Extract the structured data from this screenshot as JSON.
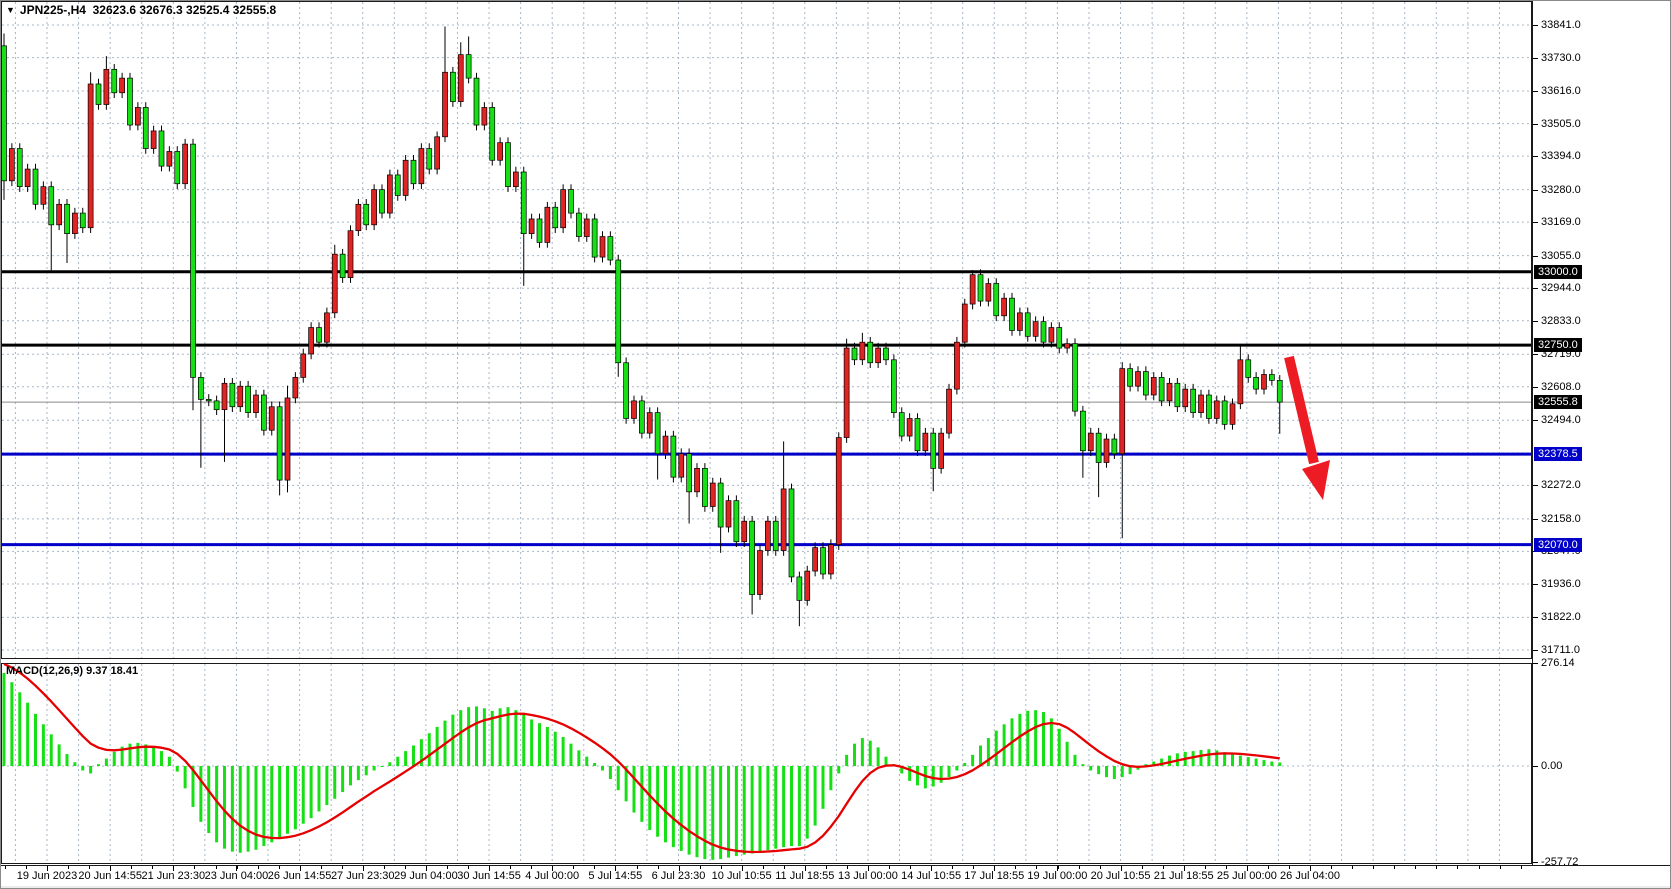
{
  "header": {
    "title": "JPN225-,H4  32623.6 32676.3 32525.4 32555.8",
    "symbol": "JPN225-",
    "period": "H4",
    "open": "32623.6",
    "high": "32676.3",
    "low": "32525.4",
    "close": "32555.8",
    "dropdown_icon": "symbol-dropdown"
  },
  "macd_panel": {
    "label": "MACD(12,26,9) 9.37 18.41",
    "indicator_name": "MACD",
    "parameters": "12,26,9",
    "main_value": "9.37",
    "signal_value": "18.41",
    "axis_labels": {
      "max": "276.14",
      "zero": "0.00",
      "min": "-257.72"
    }
  },
  "price_axis": {
    "visible_ticks": [
      "33841.0",
      "33730.0",
      "33616.0",
      "33505.0",
      "33394.0",
      "33280.0",
      "33169.0",
      "33055.0",
      "32944.0",
      "32833.0",
      "32719.0",
      "32608.0",
      "32494.0",
      "32272.0",
      "32158.0",
      "32047.0",
      "31936.0",
      "31822.0",
      "31711.0"
    ],
    "markers": [
      {
        "label": "33000.0",
        "price": 33000.0,
        "bg": "#000000"
      },
      {
        "label": "32750.0",
        "price": 32750.0,
        "bg": "#000000"
      },
      {
        "label": "32555.8",
        "price": 32555.8,
        "bg": "#000000"
      },
      {
        "label": "32378.5",
        "price": 32378.5,
        "bg": "#0000c8"
      },
      {
        "label": "32070.0",
        "price": 32070.0,
        "bg": "#0000c8"
      }
    ]
  },
  "time_axis": {
    "labels": [
      "19 Jun 2023",
      "20 Jun 14:55",
      "21 Jun 23:30",
      "23 Jun 04:00",
      "26 Jun 14:55",
      "27 Jun 23:30",
      "29 Jun 04:00",
      "30 Jun 14:55",
      "4 Jul 00:00",
      "5 Jul 14:55",
      "6 Jul 23:30",
      "10 Jul 10:55",
      "11 Jul 18:55",
      "13 Jul 00:00",
      "14 Jul 10:55",
      "17 Jul 18:55",
      "19 Jul 00:00",
      "20 Jul 10:55",
      "21 Jul 18:55",
      "25 Jul 00:00",
      "26 Jul 04:00"
    ]
  },
  "annotation": {
    "type": "down-trend-arrow",
    "color": "#ed1b24",
    "from_price": 32700,
    "to_price": 32230
  },
  "colors": {
    "bull_candle": "#df2423",
    "bear_candle": "#16df16",
    "candle_outline": "#000000",
    "grid": "#a8b6c6",
    "black_level_line": "#000000",
    "blue_level_line": "#0000c8",
    "current_price_line": "#8a8a8a",
    "macd_histogram": "#16df16",
    "macd_signal": "#e60000",
    "background": "#ffffff"
  },
  "chart_data": {
    "type": "candlestick",
    "title": "JPN225-,H4",
    "note": "red = bullish, green = bearish (Japanese color convention); values approximated from pixels",
    "ylim": [
      31711.0,
      33841.0
    ],
    "price_ticks": [
      33841,
      33730,
      33616,
      33505,
      33394,
      33280,
      33169,
      33055,
      32944,
      32833,
      32719,
      32608,
      32494,
      32383,
      32272,
      32158,
      32047,
      31936,
      31822,
      31711
    ],
    "x_labels": [
      "19 Jun 2023",
      "20 Jun 14:55",
      "21 Jun 23:30",
      "23 Jun 04:00",
      "26 Jun 14:55",
      "27 Jun 23:30",
      "29 Jun 04:00",
      "30 Jun 14:55",
      "4 Jul 00:00",
      "5 Jul 14:55",
      "6 Jul 23:30",
      "10 Jul 10:55",
      "11 Jul 18:55",
      "13 Jul 00:00",
      "14 Jul 10:55",
      "17 Jul 18:55",
      "19 Jul 00:00",
      "20 Jul 10:55",
      "21 Jul 18:55",
      "25 Jul 00:00",
      "26 Jul 04:00"
    ],
    "bars_per_label": 8,
    "horizontal_lines": [
      {
        "price": 33000.0,
        "color": "#000000",
        "width": 3
      },
      {
        "price": 32750.0,
        "color": "#000000",
        "width": 3
      },
      {
        "price": 32378.5,
        "color": "#0000c8",
        "width": 3
      },
      {
        "price": 32070.0,
        "color": "#0000c8",
        "width": 3
      }
    ],
    "current_price": 32555.8,
    "candles": [
      [
        33770,
        33812,
        33245,
        33310
      ],
      [
        33310,
        33438,
        33292,
        33420
      ],
      [
        33420,
        33438,
        33272,
        33290
      ],
      [
        33290,
        33368,
        33272,
        33350
      ],
      [
        33350,
        33368,
        33212,
        33230
      ],
      [
        33230,
        33308,
        33212,
        33290
      ],
      [
        33290,
        33308,
        33005,
        33160
      ],
      [
        33160,
        33248,
        33142,
        33230
      ],
      [
        33230,
        33248,
        33030,
        33130
      ],
      [
        33130,
        33218,
        33112,
        33200
      ],
      [
        33200,
        33218,
        33132,
        33150
      ],
      [
        33150,
        33680,
        33132,
        33640
      ],
      [
        33640,
        33658,
        33552,
        33570
      ],
      [
        33570,
        33735,
        33552,
        33690
      ],
      [
        33690,
        33708,
        33592,
        33610
      ],
      [
        33610,
        33678,
        33592,
        33660
      ],
      [
        33660,
        33678,
        33482,
        33500
      ],
      [
        33500,
        33578,
        33482,
        33560
      ],
      [
        33560,
        33578,
        33402,
        33420
      ],
      [
        33420,
        33498,
        33402,
        33480
      ],
      [
        33480,
        33498,
        33342,
        33360
      ],
      [
        33360,
        33428,
        33342,
        33410
      ],
      [
        33410,
        33428,
        33282,
        33300
      ],
      [
        33300,
        33453,
        33282,
        33435
      ],
      [
        33435,
        33453,
        32528,
        32640
      ],
      [
        32640,
        32658,
        32332,
        32565
      ],
      [
        32565,
        32583,
        32542,
        32560
      ],
      [
        32560,
        32578,
        32512,
        32530
      ],
      [
        32530,
        32638,
        32352,
        32620
      ],
      [
        32620,
        32638,
        32522,
        32540
      ],
      [
        32540,
        32628,
        32522,
        32610
      ],
      [
        32610,
        32628,
        32502,
        32520
      ],
      [
        32520,
        32598,
        32502,
        32580
      ],
      [
        32580,
        32598,
        32442,
        32460
      ],
      [
        32460,
        32558,
        32442,
        32540
      ],
      [
        32540,
        32558,
        32238,
        32290
      ],
      [
        32290,
        32612,
        32248,
        32570
      ],
      [
        32570,
        32658,
        32552,
        32640
      ],
      [
        32640,
        32738,
        32622,
        32720
      ],
      [
        32720,
        32828,
        32702,
        32810
      ],
      [
        32810,
        32828,
        32742,
        32760
      ],
      [
        32760,
        32878,
        32742,
        32860
      ],
      [
        32860,
        33092,
        32842,
        33060
      ],
      [
        33060,
        33078,
        32962,
        32980
      ],
      [
        32980,
        33158,
        32962,
        33140
      ],
      [
        33140,
        33248,
        33122,
        33230
      ],
      [
        33230,
        33248,
        33142,
        33160
      ],
      [
        33160,
        33298,
        33142,
        33280
      ],
      [
        33280,
        33298,
        33182,
        33200
      ],
      [
        33200,
        33348,
        33182,
        33330
      ],
      [
        33330,
        33348,
        33242,
        33260
      ],
      [
        33260,
        33398,
        33242,
        33380
      ],
      [
        33380,
        33398,
        33282,
        33300
      ],
      [
        33300,
        33438,
        33282,
        33420
      ],
      [
        33420,
        33438,
        33332,
        33350
      ],
      [
        33350,
        33478,
        33332,
        33460
      ],
      [
        33460,
        33836,
        33442,
        33680
      ],
      [
        33680,
        33698,
        33562,
        33580
      ],
      [
        33580,
        33782,
        33562,
        33740
      ],
      [
        33740,
        33802,
        33642,
        33660
      ],
      [
        33660,
        33678,
        33482,
        33500
      ],
      [
        33500,
        33578,
        33482,
        33560
      ],
      [
        33560,
        33578,
        33362,
        33380
      ],
      [
        33380,
        33458,
        33362,
        33440
      ],
      [
        33440,
        33458,
        33272,
        33290
      ],
      [
        33290,
        33358,
        33272,
        33340
      ],
      [
        33340,
        33358,
        32952,
        33130
      ],
      [
        33130,
        33198,
        33112,
        33180
      ],
      [
        33180,
        33198,
        33082,
        33100
      ],
      [
        33100,
        33238,
        33082,
        33220
      ],
      [
        33220,
        33238,
        33132,
        33150
      ],
      [
        33150,
        33298,
        33132,
        33280
      ],
      [
        33280,
        33298,
        33182,
        33200
      ],
      [
        33200,
        33218,
        33102,
        33120
      ],
      [
        33120,
        33198,
        33102,
        33180
      ],
      [
        33180,
        33198,
        33032,
        33050
      ],
      [
        33050,
        33138,
        33032,
        33120
      ],
      [
        33120,
        33138,
        33022,
        33040
      ],
      [
        33040,
        33058,
        32642,
        32690
      ],
      [
        32690,
        32708,
        32482,
        32500
      ],
      [
        32500,
        32578,
        32482,
        32560
      ],
      [
        32560,
        32578,
        32432,
        32450
      ],
      [
        32450,
        32538,
        32432,
        32520
      ],
      [
        32520,
        32538,
        32292,
        32380
      ],
      [
        32380,
        32458,
        32362,
        32440
      ],
      [
        32440,
        32458,
        32282,
        32300
      ],
      [
        32300,
        32398,
        32282,
        32380
      ],
      [
        32380,
        32398,
        32142,
        32250
      ],
      [
        32250,
        32348,
        32232,
        32330
      ],
      [
        32330,
        32348,
        32182,
        32200
      ],
      [
        32200,
        32298,
        32182,
        32280
      ],
      [
        32280,
        32298,
        32042,
        32130
      ],
      [
        32130,
        32238,
        32112,
        32220
      ],
      [
        32220,
        32238,
        32062,
        32080
      ],
      [
        32080,
        32168,
        32062,
        32150
      ],
      [
        32150,
        32168,
        31832,
        31900
      ],
      [
        31900,
        32068,
        31882,
        32050
      ],
      [
        32050,
        32168,
        32032,
        32150
      ],
      [
        32150,
        32168,
        32032,
        32050
      ],
      [
        32050,
        32422,
        32032,
        32260
      ],
      [
        32260,
        32278,
        31942,
        31960
      ],
      [
        31960,
        31978,
        31792,
        31880
      ],
      [
        31880,
        31998,
        31862,
        31980
      ],
      [
        31980,
        32078,
        31962,
        32060
      ],
      [
        32060,
        32078,
        31952,
        31970
      ],
      [
        31970,
        32088,
        31952,
        32070
      ],
      [
        32070,
        32453,
        32052,
        32435
      ],
      [
        32435,
        32772,
        32417,
        32740
      ],
      [
        32740,
        32758,
        32682,
        32700
      ],
      [
        32700,
        32792,
        32682,
        32760
      ],
      [
        32760,
        32778,
        32672,
        32690
      ],
      [
        32690,
        32758,
        32672,
        32740
      ],
      [
        32740,
        32758,
        32682,
        32700
      ],
      [
        32700,
        32718,
        32502,
        32520
      ],
      [
        32520,
        32538,
        32422,
        32440
      ],
      [
        32440,
        32518,
        32422,
        32500
      ],
      [
        32500,
        32518,
        32372,
        32390
      ],
      [
        32390,
        32468,
        32372,
        32450
      ],
      [
        32450,
        32468,
        32252,
        32330
      ],
      [
        32330,
        32468,
        32312,
        32450
      ],
      [
        32450,
        32618,
        32432,
        32600
      ],
      [
        32600,
        32778,
        32582,
        32760
      ],
      [
        32760,
        32908,
        32742,
        32890
      ],
      [
        32890,
        33006,
        32872,
        32990
      ],
      [
        32990,
        33008,
        32882,
        32900
      ],
      [
        32900,
        32978,
        32882,
        32960
      ],
      [
        32960,
        32978,
        32832,
        32850
      ],
      [
        32850,
        32928,
        32832,
        32910
      ],
      [
        32910,
        32928,
        32782,
        32800
      ],
      [
        32800,
        32878,
        32782,
        32860
      ],
      [
        32860,
        32878,
        32762,
        32780
      ],
      [
        32780,
        32848,
        32762,
        32830
      ],
      [
        32830,
        32848,
        32742,
        32760
      ],
      [
        32760,
        32828,
        32742,
        32810
      ],
      [
        32810,
        32828,
        32722,
        32740
      ],
      [
        32740,
        32773,
        32722,
        32755
      ],
      [
        32755,
        32773,
        32507,
        32525
      ],
      [
        32525,
        32543,
        32298,
        32390
      ],
      [
        32390,
        32468,
        32372,
        32450
      ],
      [
        32450,
        32468,
        32232,
        32350
      ],
      [
        32350,
        32448,
        32332,
        32430
      ],
      [
        32430,
        32448,
        32362,
        32380
      ],
      [
        32380,
        32692,
        32092,
        32670
      ],
      [
        32670,
        32688,
        32592,
        32610
      ],
      [
        32610,
        32678,
        32592,
        32660
      ],
      [
        32660,
        32678,
        32562,
        32580
      ],
      [
        32580,
        32658,
        32562,
        32640
      ],
      [
        32640,
        32658,
        32542,
        32560
      ],
      [
        32560,
        32638,
        32542,
        32620
      ],
      [
        32620,
        32638,
        32522,
        32540
      ],
      [
        32540,
        32618,
        32522,
        32600
      ],
      [
        32600,
        32618,
        32502,
        32520
      ],
      [
        32520,
        32598,
        32502,
        32580
      ],
      [
        32580,
        32598,
        32482,
        32500
      ],
      [
        32500,
        32578,
        32482,
        32560
      ],
      [
        32560,
        32578,
        32462,
        32480
      ],
      [
        32480,
        32568,
        32462,
        32550
      ],
      [
        32550,
        32748,
        32532,
        32700
      ],
      [
        32700,
        32718,
        32622,
        32640
      ],
      [
        32640,
        32658,
        32582,
        32600
      ],
      [
        32600,
        32668,
        32582,
        32650
      ],
      [
        32650,
        32668,
        32612,
        32630
      ],
      [
        32630,
        32648,
        32448,
        32555.8
      ]
    ],
    "indicator": {
      "type": "MACD",
      "params": [
        12,
        26,
        9
      ],
      "ylim": [
        -257.72,
        276.14
      ],
      "current_main": 9.37,
      "current_signal": 18.41,
      "signal_period": 9,
      "signal_seed": 280,
      "histogram": [
        250,
        225,
        198,
        170,
        140,
        112,
        85,
        58,
        32,
        10,
        -12,
        -20,
        5,
        20,
        38,
        52,
        60,
        62,
        58,
        50,
        40,
        25,
        -15,
        -60,
        -110,
        -150,
        -180,
        -205,
        -222,
        -230,
        -233,
        -230,
        -225,
        -215,
        -205,
        -195,
        -182,
        -170,
        -155,
        -140,
        -122,
        -105,
        -88,
        -70,
        -52,
        -38,
        -25,
        -12,
        -2,
        10,
        25,
        40,
        55,
        72,
        88,
        105,
        122,
        138,
        150,
        158,
        160,
        155,
        148,
        155,
        158,
        150,
        138,
        125,
        115,
        105,
        92,
        78,
        60,
        42,
        25,
        8,
        -12,
        -35,
        -65,
        -95,
        -125,
        -150,
        -172,
        -190,
        -205,
        -218,
        -228,
        -238,
        -245,
        -250,
        -252,
        -250,
        -246,
        -242,
        -238,
        -235,
        -230,
        -226,
        -222,
        -218,
        -215,
        -215,
        -195,
        -160,
        -115,
        -65,
        -20,
        30,
        60,
        75,
        68,
        50,
        25,
        5,
        -20,
        -40,
        -52,
        -60,
        -55,
        -45,
        -30,
        -12,
        8,
        30,
        55,
        75,
        95,
        112,
        128,
        140,
        148,
        150,
        145,
        128,
        100,
        65,
        30,
        5,
        -12,
        -22,
        -30,
        -35,
        -30,
        -22,
        -10,
        5,
        12,
        20,
        28,
        34,
        38,
        40,
        43,
        45,
        42,
        37,
        32,
        28,
        24,
        20,
        16,
        12,
        9.37
      ]
    }
  }
}
